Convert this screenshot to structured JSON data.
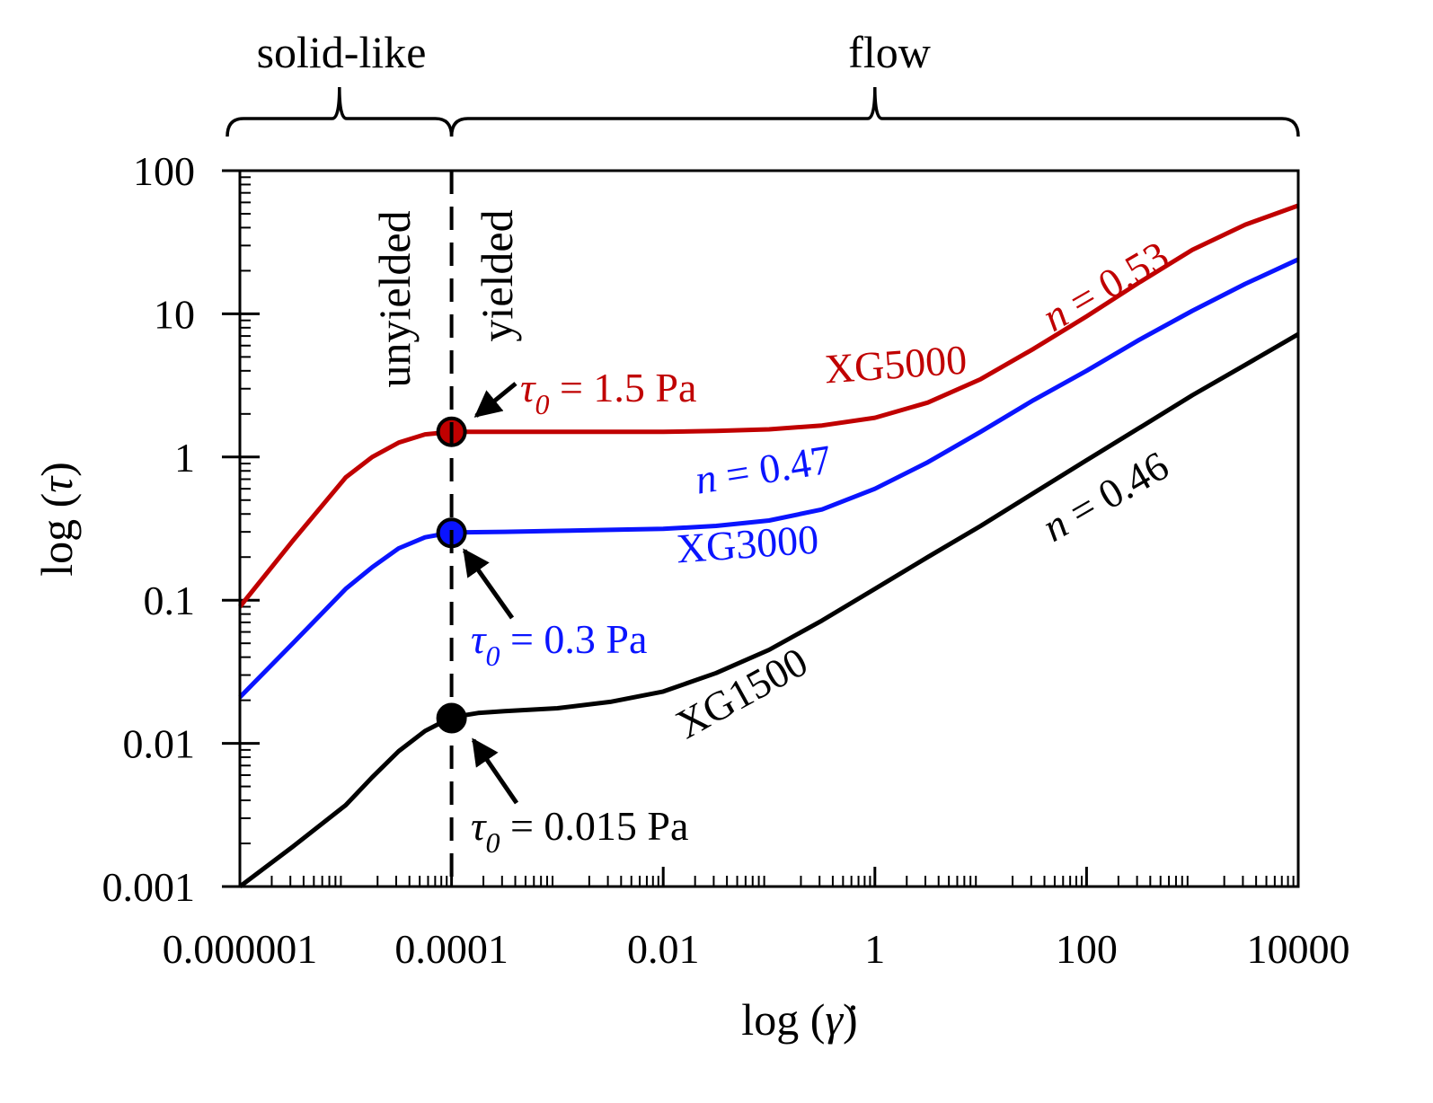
{
  "chart_data": {
    "type": "line",
    "scale": {
      "x": "log",
      "y": "log"
    },
    "xlabel": {
      "pre": "log (",
      "sym": "γ̇",
      "post": ")"
    },
    "ylabel": {
      "pre": "log (",
      "sym": "τ",
      "post": ")"
    },
    "xlim": [
      1e-06,
      10000
    ],
    "ylim": [
      0.001,
      100
    ],
    "x_ticks": [
      {
        "value": 1e-06,
        "label": "0.000001"
      },
      {
        "value": 0.0001,
        "label": "0.0001"
      },
      {
        "value": 0.01,
        "label": "0.01"
      },
      {
        "value": 1,
        "label": "1"
      },
      {
        "value": 100,
        "label": "100"
      },
      {
        "value": 10000,
        "label": "10000"
      }
    ],
    "y_ticks": [
      {
        "value": 0.001,
        "label": "0.001"
      },
      {
        "value": 0.01,
        "label": "0.01"
      },
      {
        "value": 0.1,
        "label": "0.1"
      },
      {
        "value": 1,
        "label": "1"
      },
      {
        "value": 10,
        "label": "10"
      },
      {
        "value": 100,
        "label": "100"
      }
    ],
    "regions": {
      "solid_like": "solid-like",
      "flow": "flow",
      "unyielded": "unyielded",
      "yielded": "yielded",
      "divider_x": 0.0001
    },
    "series": [
      {
        "name": "XG5000",
        "color": "#c00000",
        "n_label": {
          "sym": "n",
          "text": " = 0.53"
        },
        "tau0_label": {
          "sym": "τ",
          "sub": "0",
          "text": " = 1.5 Pa"
        },
        "yield_point": {
          "x": 0.0001,
          "y": 1.5
        },
        "points": [
          [
            1e-06,
            0.09
          ],
          [
            3.16e-06,
            0.26
          ],
          [
            1e-05,
            0.72
          ],
          [
            1.78e-05,
            1.0
          ],
          [
            3.16e-05,
            1.26
          ],
          [
            5.62e-05,
            1.44
          ],
          [
            0.0001,
            1.5
          ],
          [
            0.000316,
            1.5
          ],
          [
            0.001,
            1.5
          ],
          [
            0.00316,
            1.5
          ],
          [
            0.01,
            1.5
          ],
          [
            0.0316,
            1.52
          ],
          [
            0.1,
            1.56
          ],
          [
            0.316,
            1.66
          ],
          [
            1,
            1.88
          ],
          [
            3.16,
            2.4
          ],
          [
            10,
            3.5
          ],
          [
            31.6,
            5.7
          ],
          [
            100,
            9.6
          ],
          [
            316,
            16.6
          ],
          [
            1000,
            28
          ],
          [
            3162,
            42
          ],
          [
            10000,
            57
          ]
        ]
      },
      {
        "name": "XG3000",
        "color": "#0a14ff",
        "n_label": {
          "sym": "n",
          "text": " = 0.47"
        },
        "tau0_label": {
          "sym": "τ",
          "sub": "0",
          "text": " = 0.3 Pa"
        },
        "yield_point": {
          "x": 0.0001,
          "y": 0.295
        },
        "points": [
          [
            1e-06,
            0.021
          ],
          [
            3.16e-06,
            0.05
          ],
          [
            1e-05,
            0.12
          ],
          [
            1.78e-05,
            0.17
          ],
          [
            3.16e-05,
            0.23
          ],
          [
            5.62e-05,
            0.275
          ],
          [
            0.0001,
            0.297
          ],
          [
            0.000316,
            0.3
          ],
          [
            0.001,
            0.305
          ],
          [
            0.00316,
            0.31
          ],
          [
            0.01,
            0.315
          ],
          [
            0.0316,
            0.33
          ],
          [
            0.1,
            0.36
          ],
          [
            0.316,
            0.43
          ],
          [
            1,
            0.6
          ],
          [
            3.16,
            0.92
          ],
          [
            10,
            1.5
          ],
          [
            31.6,
            2.5
          ],
          [
            100,
            4.0
          ],
          [
            316,
            6.6
          ],
          [
            1000,
            10.5
          ],
          [
            3162,
            16.2
          ],
          [
            10000,
            24
          ]
        ]
      },
      {
        "name": "XG1500",
        "color": "#000000",
        "n_label": {
          "sym": "n",
          "text": " = 0.46"
        },
        "tau0_label": {
          "sym": "τ",
          "sub": "0",
          "text": " = 0.015 Pa"
        },
        "yield_point": {
          "x": 0.0001,
          "y": 0.015
        },
        "points": [
          [
            1e-06,
            0.001
          ],
          [
            3.16e-06,
            0.0019
          ],
          [
            1e-05,
            0.0037
          ],
          [
            1.78e-05,
            0.0058
          ],
          [
            3.16e-05,
            0.0088
          ],
          [
            5.62e-05,
            0.0122
          ],
          [
            0.0001,
            0.0152
          ],
          [
            0.000178,
            0.0163
          ],
          [
            0.000316,
            0.0168
          ],
          [
            0.001,
            0.0176
          ],
          [
            0.00316,
            0.0195
          ],
          [
            0.01,
            0.023
          ],
          [
            0.0316,
            0.031
          ],
          [
            0.1,
            0.045
          ],
          [
            0.316,
            0.072
          ],
          [
            1,
            0.12
          ],
          [
            3.16,
            0.2
          ],
          [
            10,
            0.33
          ],
          [
            31.6,
            0.56
          ],
          [
            100,
            0.95
          ],
          [
            316,
            1.6
          ],
          [
            1000,
            2.7
          ],
          [
            3162,
            4.4
          ],
          [
            10000,
            7.2
          ]
        ]
      }
    ]
  }
}
